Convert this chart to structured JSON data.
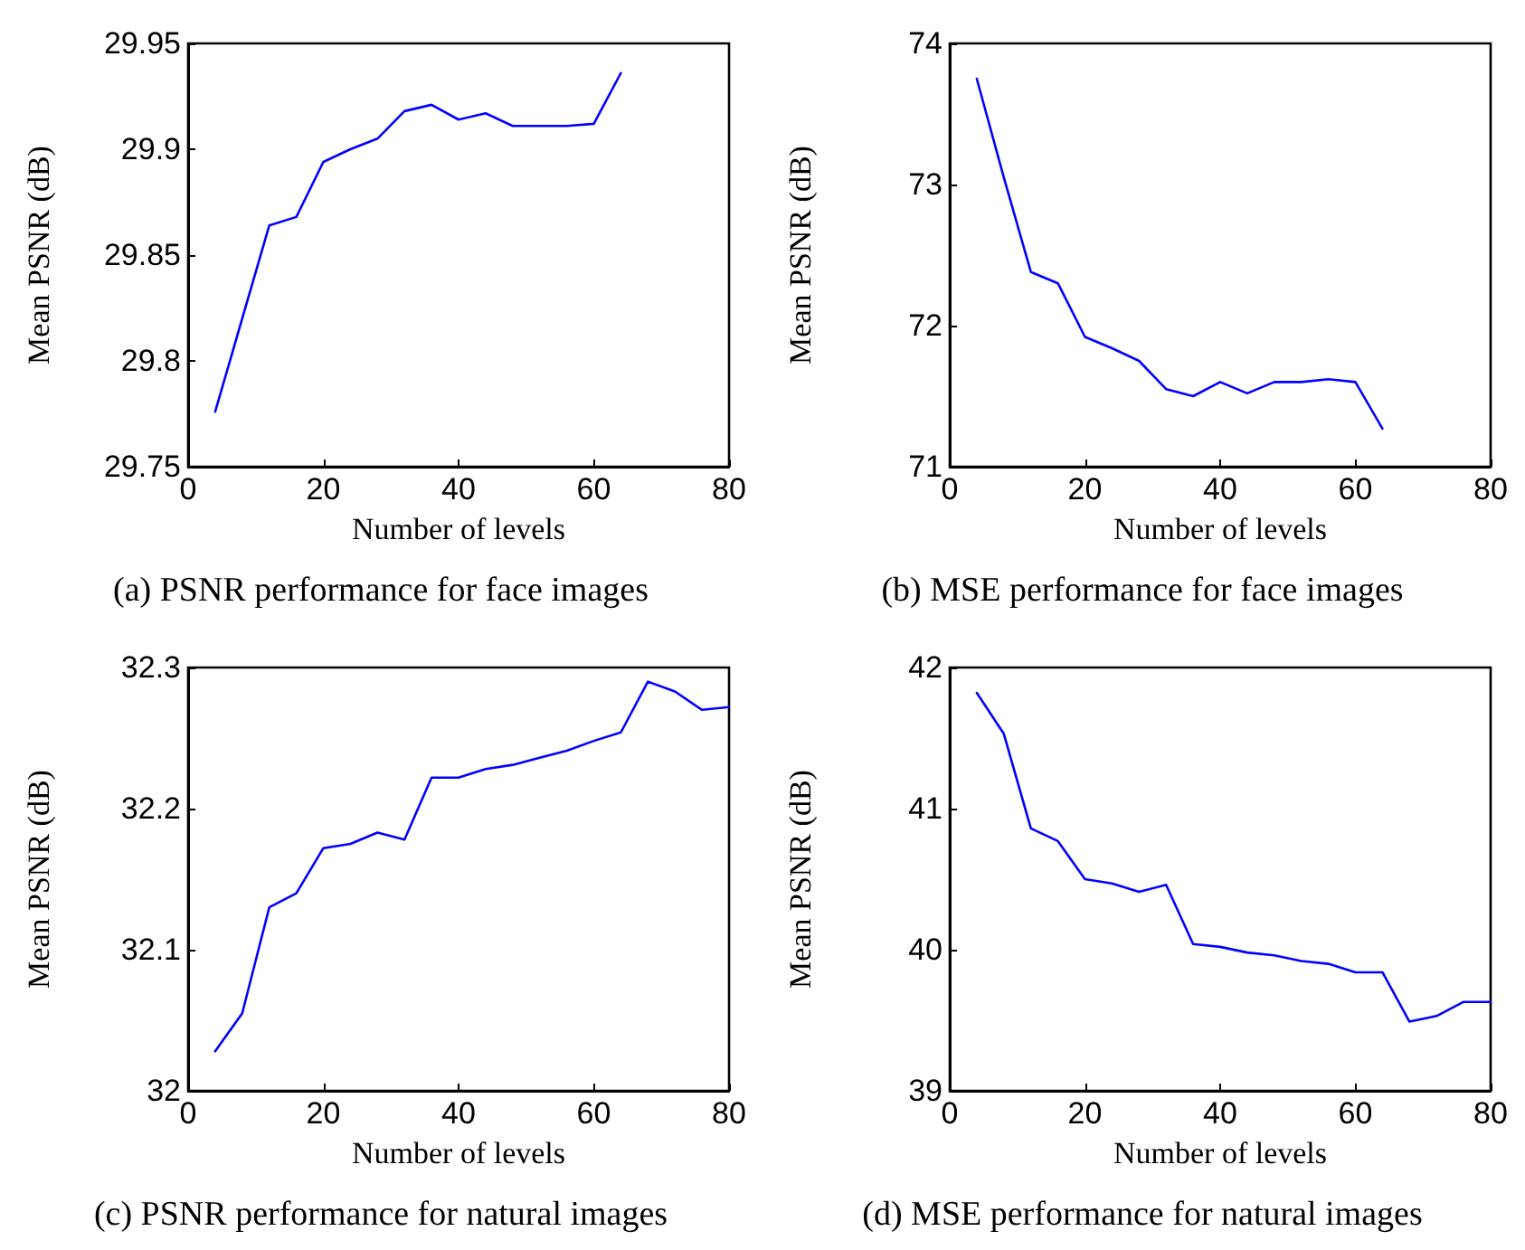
{
  "chart_data": [
    {
      "type": "line",
      "xlabel": "Number of levels",
      "ylabel": "Mean PSNR (dB)",
      "annotations": [
        "(a) PSNR performance for face images"
      ],
      "xlim": [
        0,
        80
      ],
      "xticks": [
        0,
        20,
        40,
        60,
        80
      ],
      "ylim": [
        29.75,
        29.95
      ],
      "yticks": [
        29.75,
        29.8,
        29.85,
        29.9,
        29.95
      ],
      "grid": false,
      "marker": "none",
      "line_style": "solid",
      "x": [
        4,
        8,
        12,
        16,
        20,
        24,
        28,
        32,
        36,
        40,
        44,
        48,
        52,
        56,
        60,
        64
      ],
      "series": [
        {
          "color": "#0000ff",
          "values": [
            29.776,
            29.82,
            29.864,
            29.868,
            29.894,
            29.9,
            29.905,
            29.918,
            29.921,
            29.914,
            29.917,
            29.911,
            29.911,
            29.911,
            29.912,
            29.936
          ]
        }
      ]
    },
    {
      "type": "line",
      "xlabel": "Number of levels",
      "ylabel": "Mean PSNR (dB)",
      "annotations": [
        "(b) MSE performance for face images"
      ],
      "xlim": [
        0,
        80
      ],
      "xticks": [
        0,
        20,
        40,
        60,
        80
      ],
      "ylim": [
        71,
        74
      ],
      "yticks": [
        71,
        72,
        73,
        74
      ],
      "grid": false,
      "marker": "none",
      "line_style": "solid",
      "x": [
        4,
        8,
        12,
        16,
        20,
        24,
        28,
        32,
        36,
        40,
        44,
        48,
        52,
        56,
        60,
        64
      ],
      "series": [
        {
          "color": "#0000ff",
          "values": [
            73.75,
            73.05,
            72.38,
            72.3,
            71.92,
            71.84,
            71.75,
            71.55,
            71.5,
            71.6,
            71.52,
            71.6,
            71.6,
            71.62,
            71.6,
            71.27
          ]
        }
      ]
    },
    {
      "type": "line",
      "xlabel": "Number of levels",
      "ylabel": "Mean PSNR (dB)",
      "annotations": [
        "(c) PSNR performance for natural images"
      ],
      "xlim": [
        0,
        80
      ],
      "xticks": [
        0,
        20,
        40,
        60,
        80
      ],
      "ylim": [
        32,
        32.3
      ],
      "yticks": [
        32,
        32.1,
        32.2,
        32.3
      ],
      "grid": false,
      "marker": "none",
      "line_style": "solid",
      "x": [
        4,
        8,
        12,
        16,
        20,
        24,
        28,
        32,
        36,
        40,
        44,
        48,
        52,
        56,
        60,
        64,
        68,
        72,
        76,
        80
      ],
      "series": [
        {
          "color": "#0000ff",
          "values": [
            32.028,
            32.055,
            32.13,
            32.14,
            32.172,
            32.175,
            32.183,
            32.178,
            32.222,
            32.222,
            32.228,
            32.231,
            32.236,
            32.241,
            32.248,
            32.254,
            32.29,
            32.283,
            32.27,
            32.272
          ]
        }
      ]
    },
    {
      "type": "line",
      "xlabel": "Number of levels",
      "ylabel": "Mean PSNR (dB)",
      "annotations": [
        "(d) MSE performance for natural images"
      ],
      "xlim": [
        0,
        80
      ],
      "xticks": [
        0,
        20,
        40,
        60,
        80
      ],
      "ylim": [
        39,
        42
      ],
      "yticks": [
        39,
        40,
        41,
        42
      ],
      "grid": false,
      "marker": "none",
      "line_style": "solid",
      "x": [
        4,
        8,
        12,
        16,
        20,
        24,
        28,
        32,
        36,
        40,
        44,
        48,
        52,
        56,
        60,
        64,
        68,
        72,
        76,
        80
      ],
      "series": [
        {
          "color": "#0000ff",
          "values": [
            41.82,
            41.53,
            40.86,
            40.77,
            40.5,
            40.47,
            40.41,
            40.46,
            40.04,
            40.02,
            39.98,
            39.96,
            39.92,
            39.9,
            39.84,
            39.84,
            39.49,
            39.53,
            39.63,
            39.63
          ]
        }
      ]
    }
  ]
}
